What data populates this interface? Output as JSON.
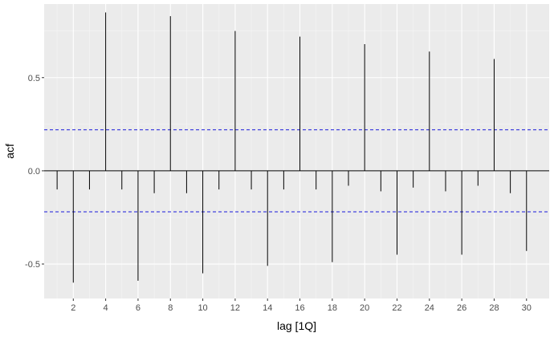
{
  "chart_data": {
    "type": "bar",
    "subtype": "acf-correlogram",
    "xlabel": "lag [1Q]",
    "ylabel": "acf",
    "x": [
      1,
      2,
      3,
      4,
      5,
      6,
      7,
      8,
      9,
      10,
      11,
      12,
      13,
      14,
      15,
      16,
      17,
      18,
      19,
      20,
      21,
      22,
      23,
      24,
      25,
      26,
      27,
      28,
      29,
      30
    ],
    "values": [
      -0.1,
      -0.6,
      -0.1,
      0.85,
      -0.1,
      -0.59,
      -0.12,
      0.83,
      -0.12,
      -0.55,
      -0.1,
      0.75,
      -0.1,
      -0.51,
      -0.1,
      0.72,
      -0.1,
      -0.49,
      -0.08,
      0.68,
      -0.11,
      -0.45,
      -0.09,
      0.64,
      -0.11,
      -0.45,
      -0.08,
      0.6,
      -0.12,
      -0.43
    ],
    "confidence_bounds": [
      -0.22,
      0.22
    ],
    "xticks": [
      2,
      4,
      6,
      8,
      10,
      12,
      14,
      16,
      18,
      20,
      22,
      24,
      26,
      28,
      30
    ],
    "yticks": [
      -0.5,
      0.0,
      0.5
    ],
    "ytick_labels": [
      "-0.5",
      "0.0",
      "0.5"
    ],
    "xlim": [
      0.2,
      31.4
    ],
    "ylim": [
      -0.685,
      0.895
    ],
    "grid": true,
    "colors": {
      "panel": "#ebebeb",
      "grid_major": "#ffffff",
      "grid_minor": "#f5f5f5",
      "spike": "#000000",
      "bound": "#1a1adb"
    }
  }
}
